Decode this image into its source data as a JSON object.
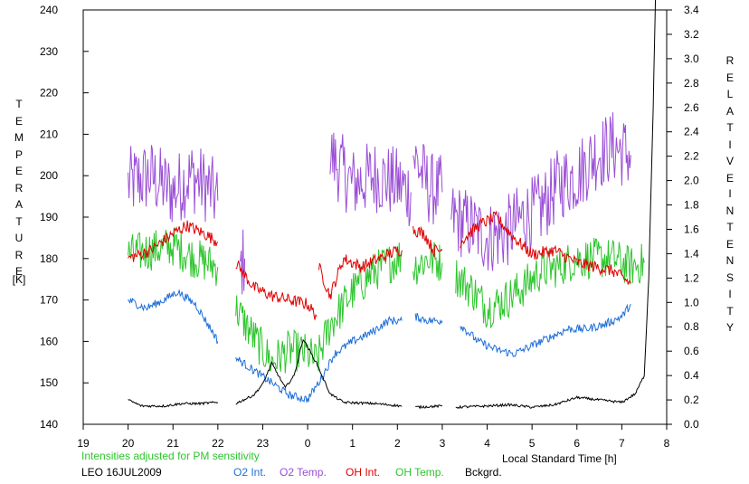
{
  "chart_data": {
    "type": "line",
    "ylabel_left_letters": [
      "T",
      "E",
      "M",
      "P",
      "E",
      "R",
      "A",
      "T",
      "U",
      "R",
      "E"
    ],
    "ylabel_left_unit": "[K]",
    "ylabel_right_letters_1": [
      "R",
      "E",
      "L",
      "A",
      "T",
      "I",
      "V",
      "E"
    ],
    "ylabel_right_letters_2": [
      "I",
      "N",
      "T",
      "E",
      "N",
      "S",
      "I",
      "T",
      "Y"
    ],
    "xlabel": "Local Standard Time [h]",
    "note": "Intensities adjusted for PM sensitivity",
    "station_date": "LEO 16JUL2009",
    "x_ticks": [
      "19",
      "20",
      "21",
      "22",
      "23",
      "0",
      "1",
      "2",
      "3",
      "4",
      "5",
      "6",
      "7",
      "8"
    ],
    "x_range": [
      19,
      32
    ],
    "y_left_ticks": [
      "140",
      "150",
      "160",
      "170",
      "180",
      "190",
      "200",
      "210",
      "220",
      "230",
      "240"
    ],
    "y_left_range": [
      140,
      240
    ],
    "y_right_ticks": [
      "0.0",
      "0.2",
      "0.4",
      "0.6",
      "0.8",
      "1.0",
      "1.2",
      "1.4",
      "1.6",
      "1.8",
      "2.0",
      "2.2",
      "2.4",
      "2.6",
      "2.8",
      "3.0",
      "3.2",
      "3.4"
    ],
    "y_right_range": [
      0,
      3.4
    ],
    "legend": [
      {
        "label": "O2 Int.",
        "color": "#1e6fd9"
      },
      {
        "label": "O2 Temp.",
        "color": "#9a4ed6"
      },
      {
        "label": "OH Int.",
        "color": "#e00000"
      },
      {
        "label": "OH Temp.",
        "color": "#2ec52e"
      },
      {
        "label": "Bckgrd.",
        "color": "#000000"
      }
    ],
    "note_color": "#2ec52e",
    "series": [
      {
        "name": "O2 Temp.",
        "axis": "left",
        "color": "#9a4ed6",
        "noise": 9,
        "segments": [
          [
            [
              20.0,
              198
            ],
            [
              20.5,
              200
            ],
            [
              21.0,
              196
            ],
            [
              21.4,
              200
            ],
            [
              21.8,
              197
            ],
            [
              22.0,
              194
            ]
          ],
          [
            [
              22.5,
              178
            ],
            [
              22.6,
              180
            ]
          ],
          [
            [
              24.5,
              205
            ],
            [
              25.0,
              198
            ],
            [
              25.5,
              200
            ],
            [
              26.0,
              198
            ],
            [
              26.3,
              196
            ]
          ],
          [
            [
              26.35,
              205
            ],
            [
              26.7,
              197
            ],
            [
              27.0,
              196
            ]
          ],
          [
            [
              27.2,
              190
            ],
            [
              27.6,
              188
            ],
            [
              28.0,
              185
            ],
            [
              28.4,
              186
            ],
            [
              28.8,
              190
            ],
            [
              29.2,
              192
            ],
            [
              29.6,
              198
            ],
            [
              30.0,
              200
            ],
            [
              30.4,
              205
            ],
            [
              30.8,
              207
            ],
            [
              31.2,
              205
            ]
          ]
        ]
      },
      {
        "name": "OH Temp.",
        "axis": "left",
        "color": "#2ec52e",
        "noise": 5,
        "segments": [
          [
            [
              20.0,
              181
            ],
            [
              20.5,
              182
            ],
            [
              21.0,
              183
            ],
            [
              21.5,
              180
            ],
            [
              22.0,
              178
            ]
          ],
          [
            [
              22.4,
              168
            ],
            [
              22.8,
              161
            ],
            [
              23.2,
              155
            ],
            [
              23.6,
              158
            ],
            [
              24.0,
              157
            ],
            [
              24.2,
              155
            ],
            [
              24.5,
              164
            ],
            [
              25.0,
              172
            ],
            [
              25.5,
              177
            ],
            [
              26.0,
              180
            ],
            [
              26.1,
              181
            ]
          ],
          [
            [
              26.35,
              178
            ],
            [
              26.7,
              180
            ],
            [
              27.0,
              179
            ]
          ],
          [
            [
              27.3,
              176
            ],
            [
              27.7,
              172
            ],
            [
              28.0,
              168
            ],
            [
              28.4,
              170
            ],
            [
              28.8,
              173
            ],
            [
              29.2,
              177
            ],
            [
              29.6,
              178
            ],
            [
              30.0,
              180
            ],
            [
              30.4,
              180
            ],
            [
              30.8,
              180
            ],
            [
              31.2,
              178
            ],
            [
              31.5,
              179
            ]
          ]
        ]
      },
      {
        "name": "OH Int.",
        "axis": "left",
        "color": "#e00000",
        "noise": 1.5,
        "segments": [
          [
            [
              20.0,
              180
            ],
            [
              20.5,
              182
            ],
            [
              21.0,
              186
            ],
            [
              21.3,
              188
            ],
            [
              21.7,
              186
            ],
            [
              22.0,
              184
            ]
          ],
          [
            [
              22.4,
              179
            ],
            [
              22.8,
              173
            ],
            [
              23.2,
              171
            ],
            [
              23.6,
              170
            ],
            [
              24.0,
              169
            ],
            [
              24.2,
              166
            ]
          ],
          [
            [
              24.25,
              178
            ],
            [
              24.5,
              171
            ],
            [
              24.8,
              180
            ],
            [
              25.2,
              178
            ],
            [
              25.6,
              180
            ],
            [
              26.0,
              182
            ],
            [
              26.1,
              182
            ]
          ],
          [
            [
              26.35,
              187
            ],
            [
              26.6,
              186
            ],
            [
              26.8,
              182
            ],
            [
              27.0,
              182
            ]
          ],
          [
            [
              27.4,
              184
            ],
            [
              27.8,
              188
            ],
            [
              28.2,
              190
            ],
            [
              28.6,
              185
            ],
            [
              29.0,
              181
            ],
            [
              29.5,
              182
            ],
            [
              30.0,
              179
            ],
            [
              30.4,
              178
            ],
            [
              30.8,
              177
            ],
            [
              31.2,
              174
            ]
          ]
        ]
      },
      {
        "name": "O2 Int.",
        "axis": "left",
        "color": "#1e6fd9",
        "noise": 1,
        "segments": [
          [
            [
              20.0,
              170
            ],
            [
              20.4,
              168
            ],
            [
              20.8,
              170
            ],
            [
              21.1,
              172
            ],
            [
              21.5,
              169
            ],
            [
              21.9,
              162
            ],
            [
              22.0,
              160
            ]
          ],
          [
            [
              22.4,
              156
            ],
            [
              22.8,
              153
            ],
            [
              23.2,
              150
            ],
            [
              23.6,
              147
            ],
            [
              24.0,
              146
            ],
            [
              24.3,
              151
            ],
            [
              24.6,
              157
            ],
            [
              25.0,
              160
            ],
            [
              25.4,
              162
            ],
            [
              25.8,
              165
            ],
            [
              26.1,
              165
            ]
          ],
          [
            [
              26.4,
              166
            ],
            [
              26.7,
              165
            ],
            [
              27.0,
              165
            ]
          ],
          [
            [
              27.4,
              164
            ],
            [
              27.8,
              160
            ],
            [
              28.2,
              158
            ],
            [
              28.6,
              157
            ],
            [
              29.0,
              159
            ],
            [
              29.4,
              161
            ],
            [
              29.8,
              163
            ],
            [
              30.2,
              163
            ],
            [
              30.6,
              164
            ],
            [
              31.0,
              166
            ],
            [
              31.2,
              169
            ]
          ]
        ]
      },
      {
        "name": "Bckgrd.",
        "axis": "right",
        "color": "#000000",
        "noise": 0.01,
        "segments": [
          [
            [
              20.0,
              0.2
            ],
            [
              20.3,
              0.15
            ],
            [
              20.8,
              0.15
            ],
            [
              21.2,
              0.17
            ],
            [
              21.6,
              0.17
            ],
            [
              22.0,
              0.18
            ]
          ],
          [
            [
              22.4,
              0.17
            ],
            [
              22.8,
              0.24
            ],
            [
              23.0,
              0.33
            ],
            [
              23.2,
              0.5
            ],
            [
              23.5,
              0.3
            ],
            [
              23.7,
              0.4
            ],
            [
              23.9,
              0.7
            ],
            [
              24.2,
              0.5
            ],
            [
              24.5,
              0.25
            ],
            [
              24.8,
              0.18
            ],
            [
              25.5,
              0.17
            ],
            [
              26.1,
              0.15
            ]
          ],
          [
            [
              26.4,
              0.14
            ],
            [
              27.0,
              0.15
            ]
          ],
          [
            [
              27.3,
              0.14
            ],
            [
              28.0,
              0.15
            ],
            [
              28.5,
              0.16
            ],
            [
              29.0,
              0.14
            ],
            [
              29.5,
              0.16
            ],
            [
              30.0,
              0.22
            ],
            [
              30.5,
              0.2
            ],
            [
              31.0,
              0.18
            ],
            [
              31.3,
              0.25
            ],
            [
              31.5,
              0.4
            ],
            [
              31.6,
              1.2
            ],
            [
              31.7,
              2.6
            ],
            [
              31.75,
              3.5
            ]
          ]
        ]
      }
    ]
  }
}
